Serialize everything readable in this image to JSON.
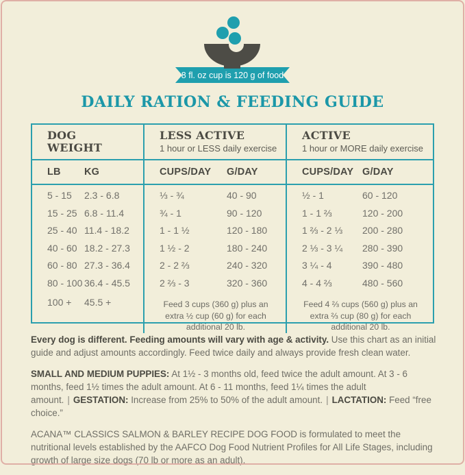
{
  "colors": {
    "teal": "#1f9fae",
    "charcoal": "#4b4a43",
    "text_gray": "#6f6e66",
    "cream_background": "#f2eeda",
    "pink_border": "#dfafa6",
    "badge_text": "#ffffff"
  },
  "header": {
    "badge": "8 fl. oz cup is 120 g of food",
    "title": "DAILY RATION & FEEDING GUIDE"
  },
  "table": {
    "groups": [
      {
        "title": "DOG\nWEIGHT",
        "subtitle": ""
      },
      {
        "title": "LESS ACTIVE",
        "subtitle": "1 hour or LESS daily exercise"
      },
      {
        "title": "ACTIVE",
        "subtitle": "1 hour or MORE daily exercise"
      }
    ],
    "columns": {
      "lb": "LB",
      "kg": "KG",
      "cups": "CUPS/DAY",
      "g": "G/DAY"
    },
    "rows": [
      [
        "5 - 15",
        "2.3 - 6.8",
        "⅓ - ¾",
        "40 - 90",
        "½ - 1",
        "60 - 120"
      ],
      [
        "15 - 25",
        "6.8 - 11.4",
        "¾ - 1",
        "90 - 120",
        "1 - 1 ⅔",
        "120 - 200"
      ],
      [
        "25 - 40",
        "11.4 - 18.2",
        "1 - 1 ½",
        "120 - 180",
        "1 ⅔ - 2 ⅓",
        "200 - 280"
      ],
      [
        "40 - 60",
        "18.2 - 27.3",
        "1 ½ - 2",
        "180 - 240",
        "2 ⅓ - 3 ¼",
        "280 - 390"
      ],
      [
        "60 - 80",
        "27.3 - 36.4",
        "2 - 2 ⅔",
        "240 - 320",
        "3 ¼ - 4",
        "390 - 480"
      ],
      [
        "80 - 100",
        "36.4 - 45.5",
        "2 ⅔ - 3",
        "320 - 360",
        "4 - 4 ⅔",
        "480 - 560"
      ]
    ],
    "overflow_row": {
      "lb": "100 +",
      "kg": "45.5 +",
      "less_active_note": "Feed 3 cups (360 g) plus an extra ½ cup (60 g) for each additional 20 lb.",
      "active_note": "Feed 4 ⅔ cups (560 g) plus an extra ⅔ cup (80 g) for each additional 20 lb."
    }
  },
  "notes": {
    "general_bold": "Every dog is different. Feeding amounts will vary with age & activity.",
    "general_rest": " Use this chart as an initial guide and adjust amounts accordingly. Feed twice daily and always provide fresh clean water.",
    "puppies_label": "SMALL AND MEDIUM PUPPIES:",
    "puppies_text": " At 1½ - 3 months old, feed twice the adult amount. At 3 - 6 months, feed 1½ times the adult amount. At 6 - 11 months, feed 1¼ times the adult amount.",
    "separator": "|",
    "gestation_label": "GESTATION:",
    "gestation_text": " Increase from 25% to 50% of the adult amount.",
    "lactation_label": "LACTATION:",
    "lactation_text": " Feed “free choice.”",
    "aafco": "ACANA™ CLASSICS SALMON & BARLEY RECIPE DOG FOOD is formulated to meet the nutritional levels established by the AAFCO Dog Food Nutrient Profiles for All Life Stages, including growth of large size dogs (70 lb or more as an adult)."
  }
}
